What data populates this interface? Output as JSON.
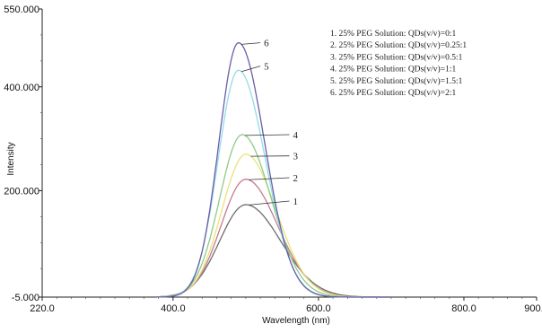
{
  "chart_data": {
    "type": "line",
    "xlabel": "Wavelength (nm)",
    "ylabel": "Intensity",
    "xlim": [
      220,
      900
    ],
    "ylim": [
      -5,
      550
    ],
    "x_tick_labels": [
      "220.0",
      "400.0",
      "600.0",
      "800.0",
      "900.0"
    ],
    "y_tick_labels": [
      "550.000",
      "400.000",
      "200.000",
      "-5.000"
    ],
    "legend": [
      "1. 25% PEG Solution: QDs(v/v)=0:1",
      "2. 25% PEG Solution: QDs(v/v)=0.25:1",
      "3. 25% PEG Solution: QDs(v/v)=0.5:1",
      "4. 25% PEG Solution: QDs(v/v)=1:1",
      "5. 25% PEG Solution: QDs(v/v)=1.5:1",
      "6. 25% PEG Solution: QDs(v/v)=2:1"
    ],
    "legend_position": "top-right",
    "series": [
      {
        "name": "1",
        "color": "#6d6d6d",
        "peak_x": 500,
        "peak_y": 173,
        "sigma_left": 36,
        "sigma_right": 48,
        "label_x": 560,
        "label_y": 180
      },
      {
        "name": "2",
        "color": "#c77a8c",
        "peak_x": 500,
        "peak_y": 222,
        "sigma_left": 34,
        "sigma_right": 44,
        "label_x": 560,
        "label_y": 225
      },
      {
        "name": "3",
        "color": "#e9e27a",
        "peak_x": 500,
        "peak_y": 270,
        "sigma_left": 33,
        "sigma_right": 42,
        "label_x": 560,
        "label_y": 267
      },
      {
        "name": "4",
        "color": "#8ccc88",
        "peak_x": 495,
        "peak_y": 308,
        "sigma_left": 31,
        "sigma_right": 40,
        "label_x": 560,
        "label_y": 308
      },
      {
        "name": "5",
        "color": "#8fdde6",
        "peak_x": 490,
        "peak_y": 432,
        "sigma_left": 28,
        "sigma_right": 37,
        "label_x": 520,
        "label_y": 440
      },
      {
        "name": "6",
        "color": "#6a5ea8",
        "peak_x": 490,
        "peak_y": 485,
        "sigma_left": 27,
        "sigma_right": 36,
        "label_x": 520,
        "label_y": 485
      }
    ],
    "x_start": 378,
    "x_end": 700,
    "baseline": -5,
    "grid": false
  }
}
